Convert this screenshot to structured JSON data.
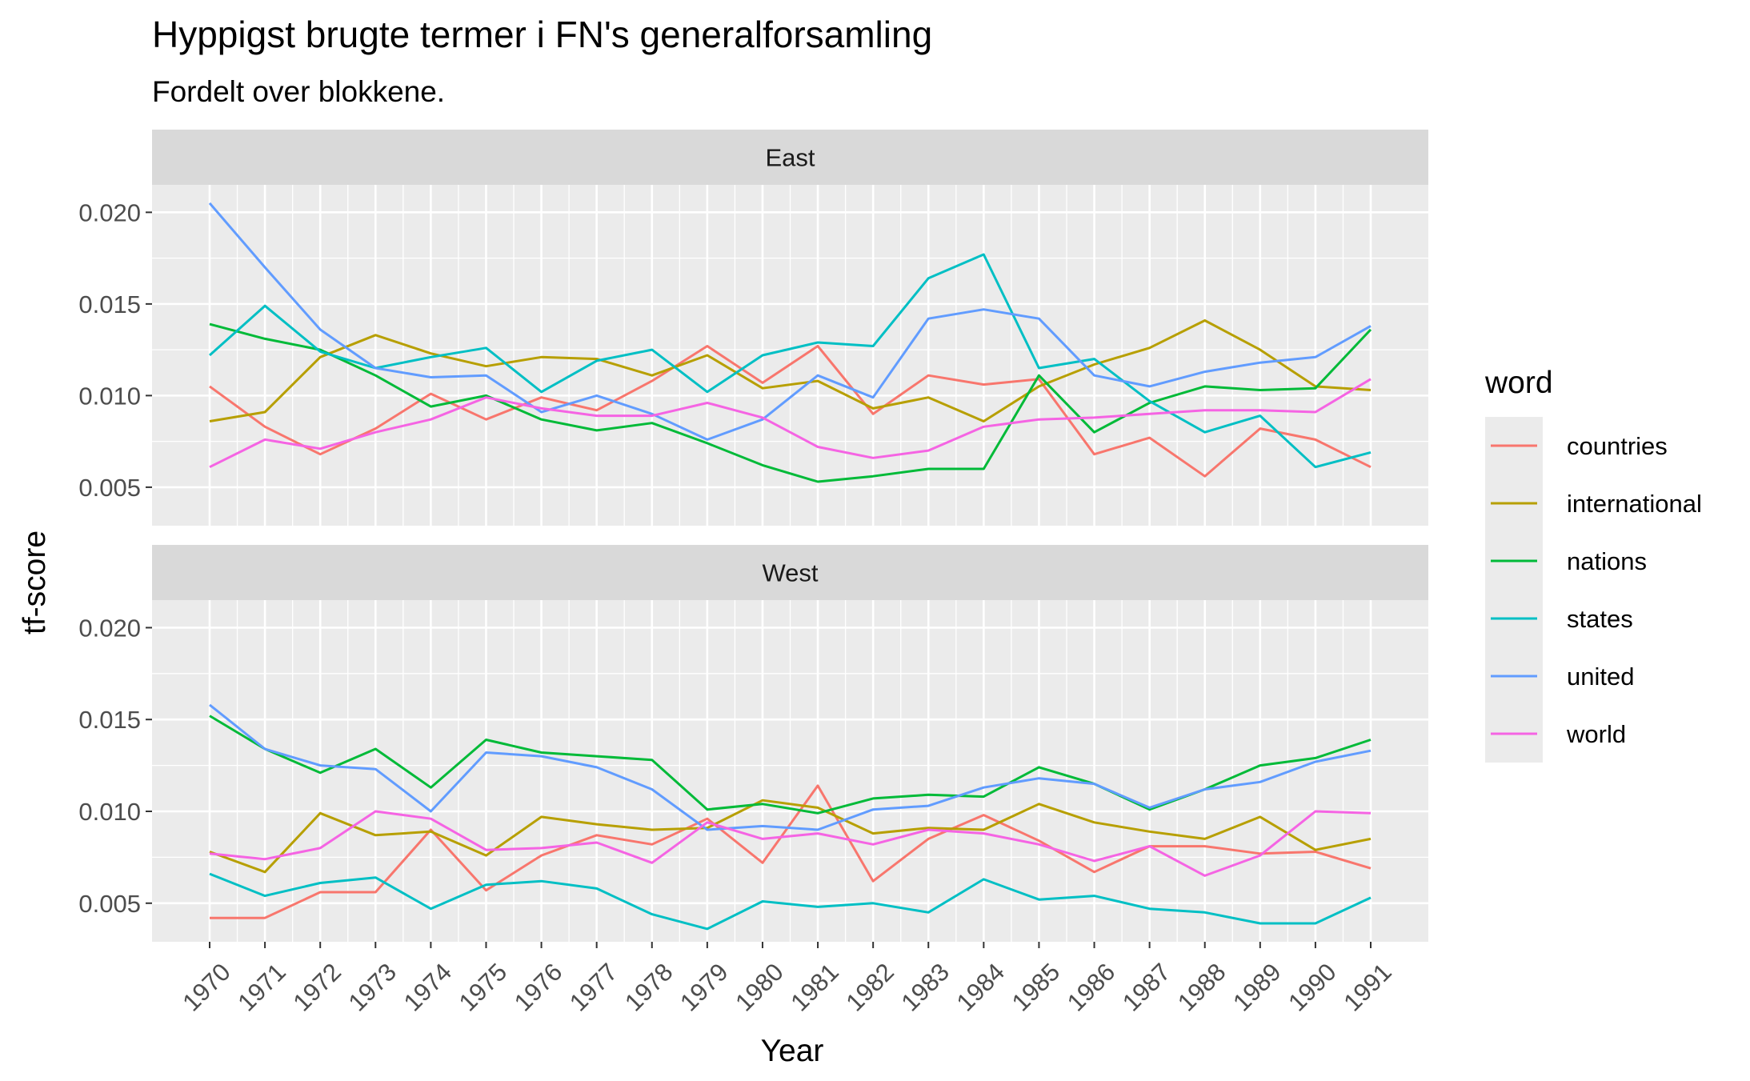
{
  "chart_data": {
    "type": "line",
    "title": "Hyppigst brugte termer i FN's generalforsamling",
    "subtitle": "Fordelt over blokkene.",
    "xlabel": "Year",
    "ylabel": "tf-score",
    "legend_title": "word",
    "legend_position": "right",
    "grid": true,
    "ylim": [
      0.0029,
      0.0215
    ],
    "y_ticks": [
      0.005,
      0.01,
      0.015,
      0.02
    ],
    "y_tick_labels": [
      "0.005",
      "0.010",
      "0.015",
      "0.020"
    ],
    "x": [
      1970,
      1971,
      1972,
      1973,
      1974,
      1975,
      1976,
      1977,
      1978,
      1979,
      1980,
      1981,
      1982,
      1983,
      1984,
      1985,
      1986,
      1987,
      1988,
      1989,
      1990,
      1991
    ],
    "x_tick_labels": [
      "1970",
      "1971",
      "1972",
      "1973",
      "1974",
      "1975",
      "1976",
      "1977",
      "1978",
      "1979",
      "1980",
      "1981",
      "1982",
      "1983",
      "1984",
      "1985",
      "1986",
      "1987",
      "1988",
      "1989",
      "1990",
      "1991"
    ],
    "series_colors": {
      "countries": "#F8766D",
      "international": "#B79F00",
      "nations": "#00BA38",
      "states": "#00BFC4",
      "united": "#619CFF",
      "world": "#F564E3"
    },
    "panels": [
      {
        "name": "East",
        "series": [
          {
            "name": "countries",
            "values": [
              0.0105,
              0.0083,
              0.0068,
              0.0082,
              0.0101,
              0.0087,
              0.0099,
              0.0092,
              0.0108,
              0.0127,
              0.0107,
              0.0127,
              0.009,
              0.0111,
              0.0106,
              0.0109,
              0.0068,
              0.0077,
              0.0056,
              0.0082,
              0.0076,
              0.0061
            ]
          },
          {
            "name": "international",
            "values": [
              0.0086,
              0.0091,
              0.0121,
              0.0133,
              0.0123,
              0.0116,
              0.0121,
              0.012,
              0.0111,
              0.0122,
              0.0104,
              0.0108,
              0.0093,
              0.0099,
              0.0086,
              0.0105,
              0.0117,
              0.0126,
              0.0141,
              0.0125,
              0.0105,
              0.0103
            ]
          },
          {
            "name": "nations",
            "values": [
              0.0139,
              0.0131,
              0.0125,
              0.0111,
              0.0094,
              0.01,
              0.0087,
              0.0081,
              0.0085,
              0.0074,
              0.0062,
              0.0053,
              0.0056,
              0.006,
              0.006,
              0.0111,
              0.008,
              0.0096,
              0.0105,
              0.0103,
              0.0104,
              0.0136
            ]
          },
          {
            "name": "states",
            "values": [
              0.0122,
              0.0149,
              0.0124,
              0.0115,
              0.0121,
              0.0126,
              0.0102,
              0.0119,
              0.0125,
              0.0102,
              0.0122,
              0.0129,
              0.0127,
              0.0164,
              0.0177,
              0.0115,
              0.012,
              0.0097,
              0.008,
              0.0089,
              0.0061,
              0.0069
            ]
          },
          {
            "name": "united",
            "values": [
              0.0205,
              0.017,
              0.0136,
              0.0115,
              0.011,
              0.0111,
              0.0091,
              0.01,
              0.009,
              0.0076,
              0.0087,
              0.0111,
              0.0099,
              0.0142,
              0.0147,
              0.0142,
              0.0111,
              0.0105,
              0.0113,
              0.0118,
              0.0121,
              0.0138
            ]
          },
          {
            "name": "world",
            "values": [
              0.0061,
              0.0076,
              0.0071,
              0.008,
              0.0087,
              0.0099,
              0.0093,
              0.0089,
              0.0089,
              0.0096,
              0.0088,
              0.0072,
              0.0066,
              0.007,
              0.0083,
              0.0087,
              0.0088,
              0.009,
              0.0092,
              0.0092,
              0.0091,
              0.0109
            ]
          }
        ]
      },
      {
        "name": "West",
        "series": [
          {
            "name": "countries",
            "values": [
              0.0042,
              0.0042,
              0.0056,
              0.0056,
              0.009,
              0.0057,
              0.0076,
              0.0087,
              0.0082,
              0.0096,
              0.0072,
              0.0114,
              0.0062,
              0.0085,
              0.0098,
              0.0084,
              0.0067,
              0.0081,
              0.0081,
              0.0077,
              0.0078,
              0.0069
            ]
          },
          {
            "name": "international",
            "values": [
              0.0078,
              0.0067,
              0.0099,
              0.0087,
              0.0089,
              0.0076,
              0.0097,
              0.0093,
              0.009,
              0.0091,
              0.0106,
              0.0102,
              0.0088,
              0.0091,
              0.009,
              0.0104,
              0.0094,
              0.0089,
              0.0085,
              0.0097,
              0.0079,
              0.0085
            ]
          },
          {
            "name": "nations",
            "values": [
              0.0152,
              0.0134,
              0.0121,
              0.0134,
              0.0113,
              0.0139,
              0.0132,
              0.013,
              0.0128,
              0.0101,
              0.0104,
              0.0099,
              0.0107,
              0.0109,
              0.0108,
              0.0124,
              0.0115,
              0.0101,
              0.0112,
              0.0125,
              0.0129,
              0.0139
            ]
          },
          {
            "name": "states",
            "values": [
              0.0066,
              0.0054,
              0.0061,
              0.0064,
              0.0047,
              0.006,
              0.0062,
              0.0058,
              0.0044,
              0.0036,
              0.0051,
              0.0048,
              0.005,
              0.0045,
              0.0063,
              0.0052,
              0.0054,
              0.0047,
              0.0045,
              0.0039,
              0.0039,
              0.0053
            ]
          },
          {
            "name": "united",
            "values": [
              0.0158,
              0.0134,
              0.0125,
              0.0123,
              0.01,
              0.0132,
              0.013,
              0.0124,
              0.0112,
              0.009,
              0.0092,
              0.009,
              0.0101,
              0.0103,
              0.0113,
              0.0118,
              0.0115,
              0.0102,
              0.0112,
              0.0116,
              0.0127,
              0.0133
            ]
          },
          {
            "name": "world",
            "values": [
              0.0077,
              0.0074,
              0.008,
              0.01,
              0.0096,
              0.0079,
              0.008,
              0.0083,
              0.0072,
              0.0094,
              0.0085,
              0.0088,
              0.0082,
              0.009,
              0.0088,
              0.0082,
              0.0073,
              0.0081,
              0.0065,
              0.0076,
              0.01,
              0.0099
            ]
          }
        ]
      }
    ]
  }
}
